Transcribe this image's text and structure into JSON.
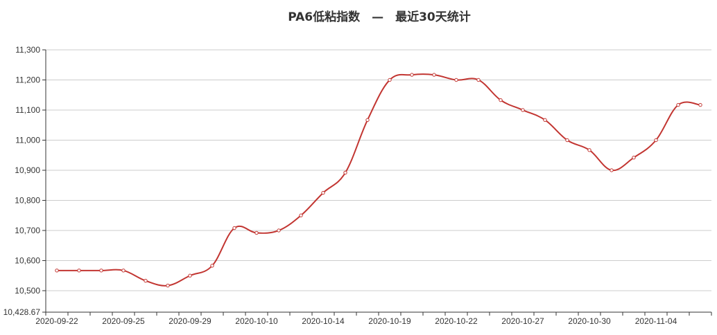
{
  "chart_data": {
    "type": "line",
    "title": "PA6低粘指数　—　最近30天统计",
    "xlabel": "",
    "ylabel": "",
    "ylim": [
      10428.67,
      11300
    ],
    "yticks": [
      "10,428.67",
      "10,500",
      "10,600",
      "10,700",
      "10,800",
      "10,900",
      "11,000",
      "11,100",
      "11,200",
      "11,300"
    ],
    "ytick_values": [
      10428.67,
      10500,
      10600,
      10700,
      10800,
      10900,
      11000,
      11100,
      11200,
      11300
    ],
    "xtick_labels": [
      "2020-09-22",
      "2020-09-25",
      "2020-09-29",
      "2020-10-10",
      "2020-10-14",
      "2020-10-19",
      "2020-10-22",
      "2020-10-27",
      "2020-10-30",
      "2020-11-04"
    ],
    "grid": true,
    "legend": "none",
    "line_color": "#c23531",
    "series": [
      {
        "values": [
          10567,
          10567,
          10567,
          10567,
          10533,
          10517,
          10550,
          10583,
          10708,
          10692,
          10700,
          10750,
          10825,
          10892,
          11067,
          11200,
          11217,
          11217,
          11200,
          11200,
          11133,
          11100,
          11067,
          11000,
          10967,
          10900,
          10942,
          11000,
          11117,
          11117
        ]
      }
    ]
  }
}
